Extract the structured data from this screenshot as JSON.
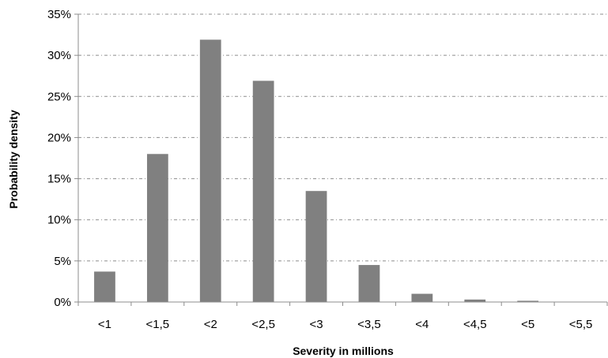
{
  "chart_data": {
    "type": "bar",
    "title": "",
    "xlabel": "Severity in millions",
    "ylabel": "Probability density",
    "categories": [
      "<1",
      "<1,5",
      "<2",
      "<2,5",
      "<3",
      "<3,5",
      "<4",
      "<4,5",
      "<5",
      "<5,5"
    ],
    "values": [
      3.7,
      18.0,
      31.9,
      26.9,
      13.5,
      4.5,
      1.0,
      0.3,
      0.15,
      0.0
    ],
    "ylim": [
      0,
      35
    ],
    "yticks": [
      0,
      5,
      10,
      15,
      20,
      25,
      30,
      35
    ],
    "ytick_labels": [
      "0%",
      "5%",
      "10%",
      "15%",
      "20%",
      "25%",
      "30%",
      "35%"
    ],
    "grid": "horizontal-dashed",
    "legend": "none",
    "bar_color": "#808080"
  }
}
